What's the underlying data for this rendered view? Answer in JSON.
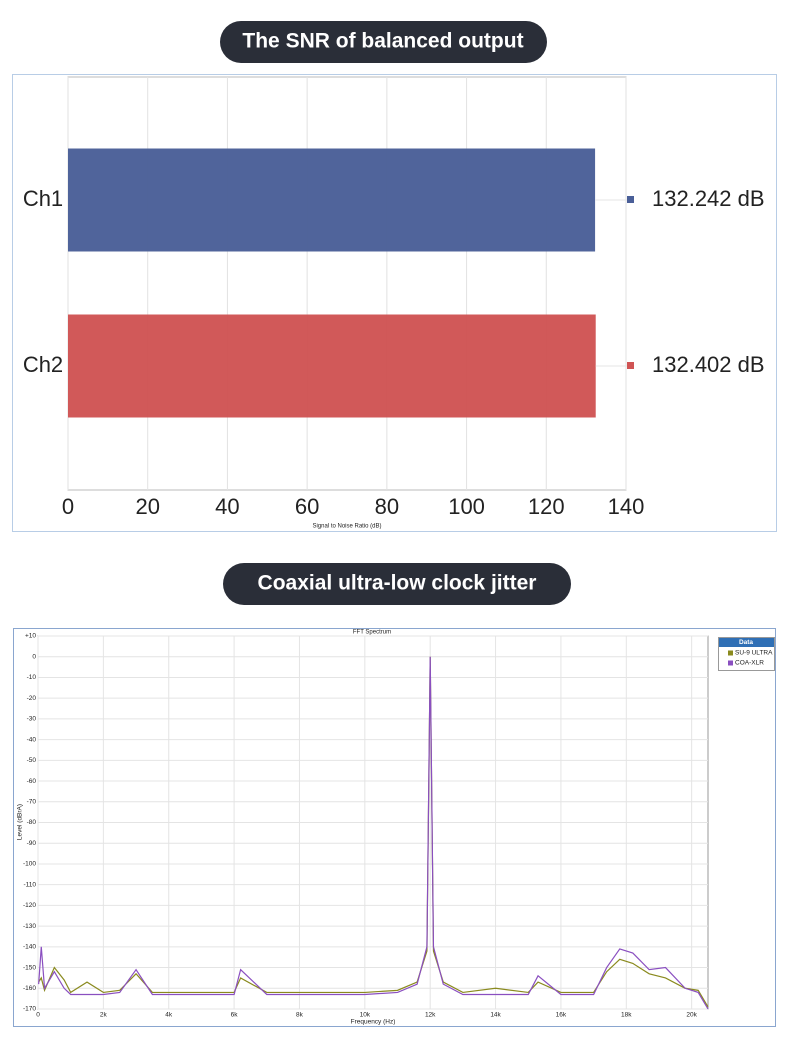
{
  "chart_data": [
    {
      "type": "bar",
      "title": "The SNR of balanced output",
      "categories": [
        "Ch1",
        "Ch2"
      ],
      "values": [
        132.242,
        132.402
      ],
      "value_labels": [
        "132.242 dB",
        "132.402 dB"
      ],
      "colors": [
        "#4a5f98",
        "#d05454"
      ],
      "xlim": [
        0,
        140
      ],
      "xticks": [
        0,
        20,
        40,
        60,
        80,
        100,
        120,
        140
      ],
      "xlabel": "Signal to Noise Ratio (dB)",
      "grid": true
    },
    {
      "type": "line",
      "title": "Coaxial ultra-low clock jitter",
      "subtitle": "FFT Spectrum",
      "xlabel": "Frequency (Hz)",
      "ylabel": "Level (dBrA)",
      "legend_title": "Data",
      "x": [
        20,
        100,
        200,
        500,
        800,
        1000,
        1500,
        2000,
        2500,
        3000,
        3500,
        4000,
        5000,
        6000,
        6200,
        7000,
        8000,
        9000,
        10000,
        11000,
        11600,
        11900,
        12000,
        12100,
        12400,
        13000,
        14000,
        15000,
        15300,
        16000,
        17000,
        17400,
        17800,
        18200,
        18700,
        19200,
        19800,
        20200,
        20500
      ],
      "series": [
        {
          "name": "SU-9 ULTRA",
          "color": "#8a8a1e",
          "values": [
            -157,
            -155,
            -161,
            -150,
            -156,
            -162,
            -157,
            -162,
            -161,
            -153,
            -162,
            -162,
            -162,
            -162,
            -155,
            -162,
            -162,
            -162,
            -162,
            -161,
            -157,
            -142,
            0,
            -142,
            -157,
            -162,
            -160,
            -162,
            -157,
            -162,
            -162,
            -152,
            -146,
            -148,
            -153,
            -155,
            -160,
            -161,
            -169
          ]
        },
        {
          "name": "COA-XLR",
          "color": "#8a4fc0",
          "values": [
            -158,
            -140,
            -160,
            -152,
            -160,
            -163,
            -163,
            -163,
            -162,
            -151,
            -163,
            -163,
            -163,
            -163,
            -151,
            -163,
            -163,
            -163,
            -163,
            -162,
            -158,
            -140,
            0,
            -140,
            -158,
            -163,
            -163,
            -163,
            -154,
            -163,
            -163,
            -150,
            -141,
            -143,
            -151,
            -150,
            -160,
            -162,
            -170
          ]
        }
      ],
      "xlim": [
        0,
        20500
      ],
      "xticks": [
        0,
        {
          "value": 2000,
          "label": "2k"
        },
        {
          "value": 4000,
          "label": "4k"
        },
        {
          "value": 6000,
          "label": "6k"
        },
        {
          "value": 8000,
          "label": "8k"
        },
        {
          "value": 10000,
          "label": "10k"
        },
        {
          "value": 12000,
          "label": "12k"
        },
        {
          "value": 14000,
          "label": "14k"
        },
        {
          "value": 16000,
          "label": "16k"
        },
        {
          "value": 18000,
          "label": "18k"
        },
        {
          "value": 20000,
          "label": "20k"
        }
      ],
      "ylim": [
        -170,
        10
      ],
      "yticks": [
        {
          "value": 10,
          "label": "+10"
        },
        0,
        -10,
        -20,
        -30,
        -40,
        -50,
        -60,
        -70,
        -80,
        -90,
        -100,
        -110,
        -120,
        -130,
        -140,
        -150,
        -160,
        -170
      ],
      "grid": true
    }
  ]
}
